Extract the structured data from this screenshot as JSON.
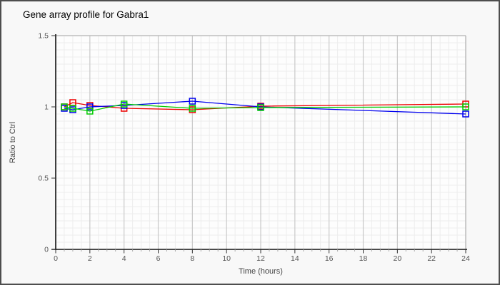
{
  "page": {
    "background": "#f8f8f8",
    "border_color": "#4e4e4e",
    "plot_background": "#fdfdfd"
  },
  "chart_data": {
    "type": "line",
    "title": "Gene array profile for Gabra1",
    "xlabel": "Time (hours)",
    "ylabel": "Ratio to Ctrl",
    "xlim": [
      0,
      24
    ],
    "ylim": [
      0,
      1.5
    ],
    "x_ticks": [
      0,
      2,
      4,
      6,
      8,
      10,
      12,
      14,
      16,
      18,
      20,
      22,
      24
    ],
    "y_ticks": [
      0,
      0.5,
      1,
      1.5
    ],
    "x_minor_step": 0.5,
    "y_minor_step": 0.05,
    "grid": true,
    "legend_position": "none",
    "marker": "open-square",
    "x": [
      0.5,
      1,
      2,
      4,
      8,
      12,
      24
    ],
    "series": [
      {
        "name": "series-red",
        "color": "#ee0000",
        "values": [
          1.0,
          1.03,
          1.01,
          0.99,
          0.98,
          1.005,
          1.02
        ]
      },
      {
        "name": "series-blue",
        "color": "#0000ee",
        "values": [
          0.99,
          0.98,
          1.0,
          1.01,
          1.04,
          1.0,
          0.95
        ]
      },
      {
        "name": "series-green",
        "color": "#00cc00",
        "values": [
          1.0,
          0.99,
          0.97,
          1.02,
          0.99,
          0.995,
          1.0
        ]
      }
    ],
    "style": {
      "grid_minor_color": "#ededed",
      "grid_major_color": "#c9c9c9",
      "plot_border_color": "#b3b3b3",
      "axis_color": "#111111",
      "tick_label_color": "#555555",
      "axis_label_color": "#444444",
      "title_color": "#000000"
    }
  }
}
